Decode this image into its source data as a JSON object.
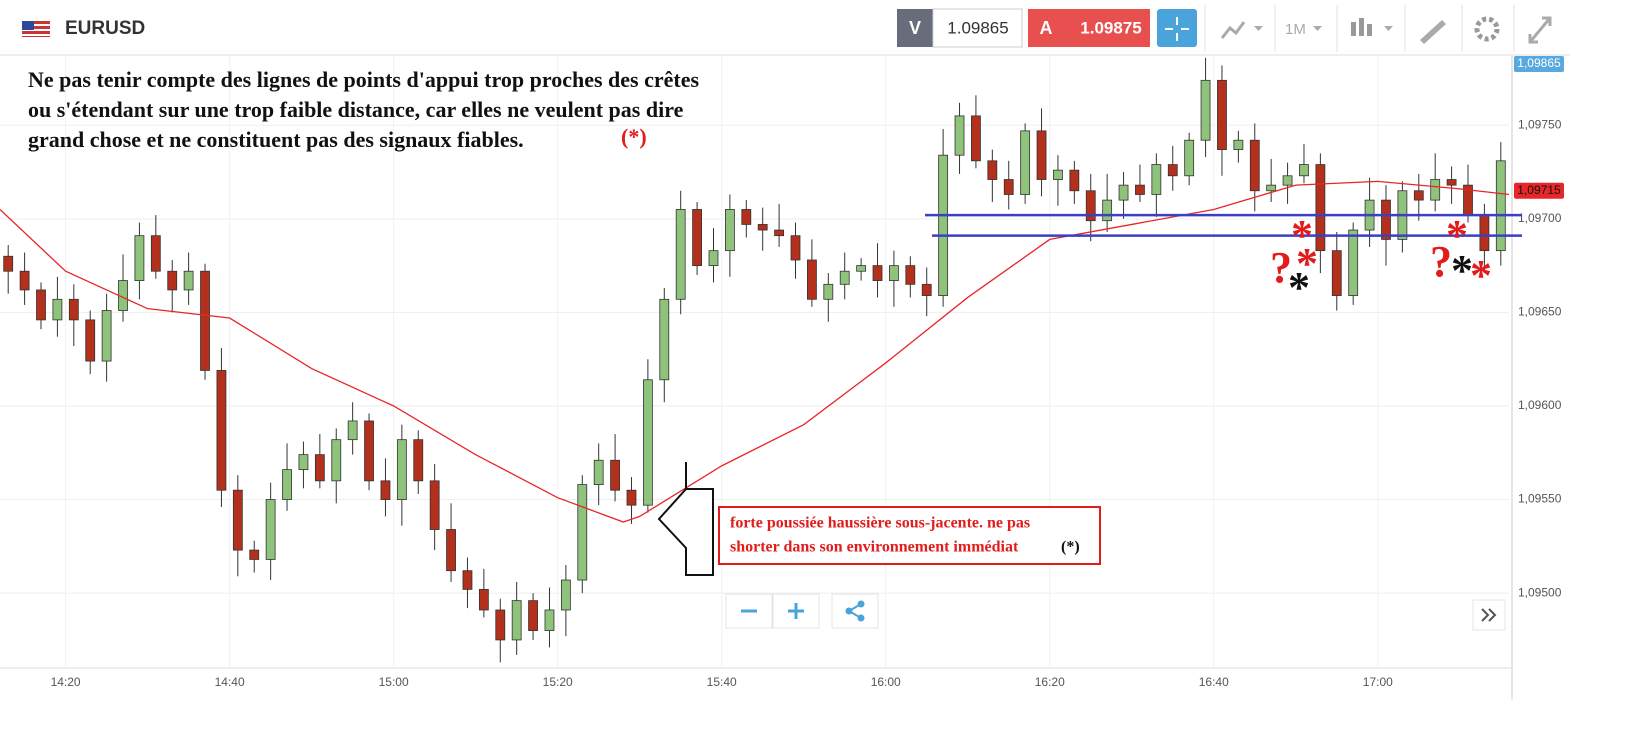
{
  "header": {
    "symbol": "EURUSD",
    "sell_label": "V",
    "sell_price": "1.09865",
    "buy_label": "A",
    "buy_price": "1.09875",
    "timeframe": "1M"
  },
  "chart_data": {
    "type": "candlestick",
    "x": [
      "14:13",
      "14:15",
      "14:17",
      "14:19",
      "14:21",
      "14:23",
      "14:25",
      "14:27",
      "14:29",
      "14:31",
      "14:33",
      "14:35",
      "14:37",
      "14:39",
      "14:41",
      "14:43",
      "14:45",
      "14:47",
      "14:49",
      "14:51",
      "14:53",
      "14:55",
      "14:57",
      "14:59",
      "15:01",
      "15:03",
      "15:05",
      "15:07",
      "15:09",
      "15:11",
      "15:13",
      "15:15",
      "15:17",
      "15:19",
      "15:21",
      "15:23",
      "15:25",
      "15:27",
      "15:29",
      "15:31",
      "15:33",
      "15:35",
      "15:37",
      "15:39",
      "15:41",
      "15:43",
      "15:45",
      "15:47",
      "15:49",
      "15:51",
      "15:53",
      "15:55",
      "15:57",
      "15:59",
      "16:01",
      "16:03",
      "16:05",
      "16:07",
      "16:09",
      "16:11",
      "16:13",
      "16:15",
      "16:17",
      "16:19",
      "16:21",
      "16:23",
      "16:25",
      "16:27",
      "16:29",
      "16:31",
      "16:33",
      "16:35",
      "16:37",
      "16:39",
      "16:41",
      "16:43",
      "16:45",
      "16:47",
      "16:49",
      "16:51",
      "16:53",
      "16:55",
      "16:57",
      "16:59",
      "17:01",
      "17:03",
      "17:05",
      "17:07",
      "17:09",
      "17:11",
      "17:13",
      "17:15"
    ],
    "open": [
      1.0968,
      1.09672,
      1.09662,
      1.09646,
      1.09657,
      1.09646,
      1.09624,
      1.09651,
      1.09667,
      1.09691,
      1.09672,
      1.09662,
      1.09672,
      1.09619,
      1.09555,
      1.09523,
      1.09518,
      1.0955,
      1.09566,
      1.09574,
      1.0956,
      1.09582,
      1.09592,
      1.0956,
      1.0955,
      1.09582,
      1.0956,
      1.09534,
      1.09512,
      1.09502,
      1.09491,
      1.09475,
      1.09496,
      1.0948,
      1.09491,
      1.09507,
      1.09558,
      1.09571,
      1.09555,
      1.09547,
      1.09614,
      1.09657,
      1.09705,
      1.09675,
      1.09683,
      1.09705,
      1.09697,
      1.09694,
      1.09691,
      1.09678,
      1.09657,
      1.09665,
      1.09672,
      1.09675,
      1.09667,
      1.09675,
      1.09665,
      1.09659,
      1.09734,
      1.09755,
      1.09731,
      1.09721,
      1.09713,
      1.09747,
      1.09721,
      1.09726,
      1.09715,
      1.09699,
      1.0971,
      1.09718,
      1.09713,
      1.09729,
      1.09723,
      1.09742,
      1.09774,
      1.09737,
      1.09742,
      1.09715,
      1.09718,
      1.09723,
      1.09729,
      1.09683,
      1.09659,
      1.09694,
      1.0971,
      1.09689,
      1.09715,
      1.0971,
      1.09721,
      1.09718,
      1.09702,
      1.09683
    ],
    "high": [
      1.09686,
      1.09682,
      1.09666,
      1.09669,
      1.09665,
      1.09651,
      1.0966,
      1.09681,
      1.09698,
      1.09702,
      1.09678,
      1.09682,
      1.09676,
      1.09631,
      1.09563,
      1.09528,
      1.09559,
      1.0958,
      1.09581,
      1.09585,
      1.09588,
      1.09602,
      1.09596,
      1.09572,
      1.0959,
      1.09587,
      1.09569,
      1.09548,
      1.09519,
      1.09513,
      1.09497,
      1.09506,
      1.095,
      1.09503,
      1.09515,
      1.09563,
      1.0958,
      1.09585,
      1.09562,
      1.09625,
      1.09663,
      1.09715,
      1.09709,
      1.09695,
      1.09713,
      1.0971,
      1.09706,
      1.09708,
      1.09698,
      1.09689,
      1.09671,
      1.09682,
      1.09679,
      1.09687,
      1.09683,
      1.0968,
      1.09674,
      1.09748,
      1.09762,
      1.09766,
      1.09737,
      1.09731,
      1.09751,
      1.09759,
      1.09734,
      1.09731,
      1.09724,
      1.09724,
      1.09725,
      1.09729,
      1.09735,
      1.09739,
      1.09746,
      1.09786,
      1.09782,
      1.09747,
      1.09751,
      1.09732,
      1.0973,
      1.0974,
      1.09735,
      1.09693,
      1.09698,
      1.09722,
      1.09718,
      1.0972,
      1.09724,
      1.09735,
      1.09728,
      1.09729,
      1.09708,
      1.09741
    ],
    "low": [
      1.0966,
      1.09654,
      1.09641,
      1.09637,
      1.09632,
      1.09617,
      1.09613,
      1.09645,
      1.09657,
      1.09668,
      1.0965,
      1.09654,
      1.09614,
      1.09546,
      1.09509,
      1.09511,
      1.09507,
      1.09544,
      1.09556,
      1.09556,
      1.09548,
      1.09574,
      1.09555,
      1.09541,
      1.09536,
      1.09553,
      1.09523,
      1.09506,
      1.09492,
      1.09487,
      1.09463,
      1.09467,
      1.09475,
      1.09471,
      1.09477,
      1.095,
      1.09547,
      1.09549,
      1.09537,
      1.09543,
      1.09602,
      1.09649,
      1.0967,
      1.09666,
      1.09669,
      1.0969,
      1.09683,
      1.09685,
      1.09668,
      1.09653,
      1.09645,
      1.09657,
      1.09667,
      1.09658,
      1.09653,
      1.09658,
      1.09648,
      1.09653,
      1.09724,
      1.09727,
      1.09709,
      1.09705,
      1.09708,
      1.09712,
      1.09707,
      1.09708,
      1.09688,
      1.09693,
      1.097,
      1.09709,
      1.09701,
      1.09715,
      1.09718,
      1.09733,
      1.09723,
      1.0973,
      1.09704,
      1.09709,
      1.09708,
      1.09719,
      1.09671,
      1.09651,
      1.09654,
      1.09685,
      1.09675,
      1.09682,
      1.09699,
      1.09704,
      1.09708,
      1.09698,
      1.09671,
      1.09675
    ],
    "close": [
      1.09672,
      1.09662,
      1.09646,
      1.09657,
      1.09646,
      1.09624,
      1.09651,
      1.09667,
      1.09691,
      1.09672,
      1.09662,
      1.09672,
      1.09619,
      1.09555,
      1.09523,
      1.09518,
      1.0955,
      1.09566,
      1.09574,
      1.0956,
      1.09582,
      1.09592,
      1.0956,
      1.0955,
      1.09582,
      1.0956,
      1.09534,
      1.09512,
      1.09502,
      1.09491,
      1.09475,
      1.09496,
      1.0948,
      1.09491,
      1.09507,
      1.09558,
      1.09571,
      1.09555,
      1.09547,
      1.09614,
      1.09657,
      1.09705,
      1.09675,
      1.09683,
      1.09705,
      1.09697,
      1.09694,
      1.09691,
      1.09678,
      1.09657,
      1.09665,
      1.09672,
      1.09675,
      1.09667,
      1.09675,
      1.09665,
      1.09659,
      1.09734,
      1.09755,
      1.09731,
      1.09721,
      1.09713,
      1.09747,
      1.09721,
      1.09726,
      1.09715,
      1.09699,
      1.0971,
      1.09718,
      1.09713,
      1.09729,
      1.09723,
      1.09742,
      1.09774,
      1.09737,
      1.09742,
      1.09715,
      1.09718,
      1.09723,
      1.09729,
      1.09683,
      1.09659,
      1.09694,
      1.0971,
      1.09689,
      1.09715,
      1.0971,
      1.09721,
      1.09718,
      1.09702,
      1.09683,
      1.09731
    ],
    "up_color": "#8fc27a",
    "down_color": "#b3301c",
    "series": [
      {
        "color": "#e8262a",
        "x": [
          "14:12",
          "14:20",
          "14:30",
          "14:40",
          "14:50",
          "15:00",
          "15:10",
          "15:20",
          "15:28",
          "15:30",
          "15:40",
          "15:50",
          "16:00",
          "16:10",
          "16:20",
          "16:30",
          "16:40",
          "16:50",
          "17:00",
          "17:10",
          "17:16"
        ],
        "values": [
          1.09705,
          1.09672,
          1.09652,
          1.09647,
          1.0962,
          1.096,
          1.09574,
          1.09551,
          1.09538,
          1.09541,
          1.09568,
          1.0959,
          1.09623,
          1.09658,
          1.09689,
          1.09697,
          1.09705,
          1.09718,
          1.0972,
          1.09716,
          1.09713
        ]
      }
    ],
    "hlines": [
      {
        "value": 1.09702,
        "color": "#3a3fc4"
      },
      {
        "value": 1.09691,
        "color": "#3a3fc4"
      }
    ],
    "xlim": [
      "14:12",
      "17:16"
    ],
    "xticks": [
      "14:20",
      "14:40",
      "15:00",
      "15:20",
      "15:40",
      "16:00",
      "16:20",
      "16:40",
      "17:00"
    ],
    "ylim": [
      1.0946,
      1.09787
    ],
    "yticks": [
      {
        "value": 1.095,
        "label": "1,09500"
      },
      {
        "value": 1.0955,
        "label": "1,09550"
      },
      {
        "value": 1.096,
        "label": "1,09600"
      },
      {
        "value": 1.0965,
        "label": "1,09650"
      },
      {
        "value": 1.097,
        "label": "1,09700"
      },
      {
        "value": 1.0975,
        "label": "1,09750"
      }
    ],
    "grid": true,
    "last_price_label": "1,09865",
    "ma_price": {
      "value": 1.09715,
      "label": "1,09715"
    }
  },
  "annotations": {
    "note_lines": [
      "Ne pas tenir compte des lignes de points d'appui trop proches des crêtes",
      "ou s'étendant sur une trop faible distance, car elles ne veulent pas dire",
      "grand chose et ne constituent pas des signaux fiables."
    ],
    "note_ref": "(*)",
    "box_lines": [
      "forte poussiée haussière sous-jacente. ne pas",
      "shorter dans son environnement immédiat"
    ],
    "box_ref": "(*)",
    "markers": [
      "*",
      "?",
      "*",
      "*",
      "*",
      "?",
      "*",
      "*"
    ]
  }
}
